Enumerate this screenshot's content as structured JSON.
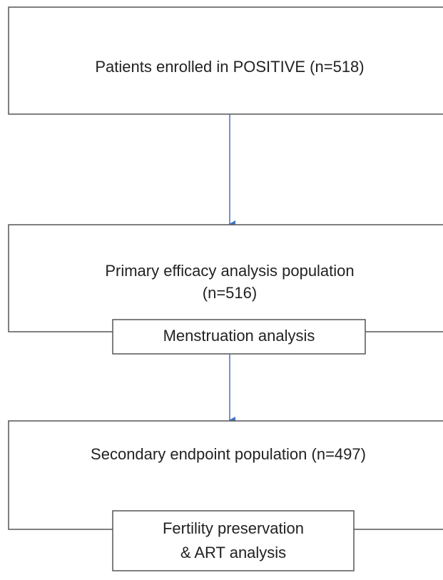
{
  "nodes": [
    {
      "lines": [
        "Patients enrolled in POSITIVE (n=518)"
      ]
    },
    {
      "lines": [
        "Primary efficacy analysis population",
        "(n=516)"
      ]
    },
    {
      "lines": [
        "Secondary endpoint population (n=497)"
      ]
    }
  ],
  "labels": [
    {
      "lines": [
        "Menstruation analysis"
      ]
    },
    {
      "lines": [
        "Fertility preservation",
        "& ART analysis"
      ]
    }
  ]
}
